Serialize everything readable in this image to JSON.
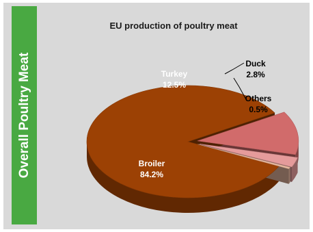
{
  "side_title": "Overall Poultry Meat",
  "chart_data": {
    "type": "pie",
    "title": "EU production of poultry meat",
    "slices": [
      {
        "label": "Broiler",
        "value": 84.2,
        "display": "84.2%",
        "color": "#9c4104"
      },
      {
        "label": "Turkey",
        "value": 12.5,
        "display": "12.5%",
        "color": "#d16b6b"
      },
      {
        "label": "Duck",
        "value": 2.8,
        "display": "2.8%",
        "color": "#e59b9b"
      },
      {
        "label": "Others",
        "value": 0.5,
        "display": "0.5%",
        "color": "#e8b89f"
      }
    ]
  },
  "colors": {
    "panel": "#d9d9d9",
    "side_bar": "#49a942",
    "label_light": "#ffffff",
    "label_dark": "#000000"
  }
}
